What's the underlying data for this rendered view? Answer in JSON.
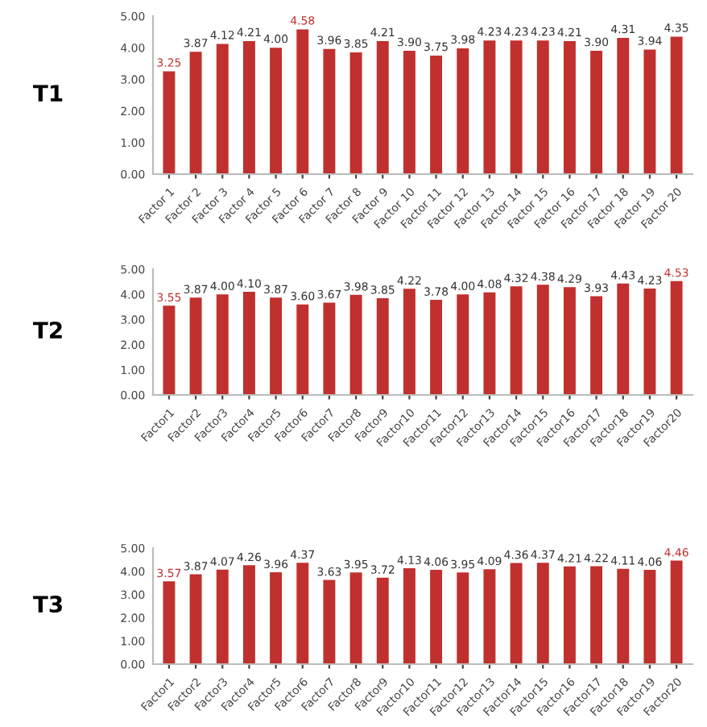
{
  "chart_data": [
    {
      "type": "bar",
      "title": "T1",
      "categories": [
        "Factor 1",
        "Factor 2",
        "Factor 3",
        "Factor 4",
        "Factor 5",
        "Factor 6",
        "Factor 7",
        "Factor 8",
        "Factor 9",
        "Factor 10",
        "Factor 11",
        "Factor 12",
        "Factor 13",
        "Factor 14",
        "Factor 15",
        "Factor 16",
        "Factor 17",
        "Factor 18",
        "Factor 19",
        "Factor 20"
      ],
      "values": [
        3.25,
        3.87,
        4.12,
        4.21,
        4.0,
        4.58,
        3.96,
        3.85,
        4.21,
        3.9,
        3.75,
        3.98,
        4.23,
        4.23,
        4.23,
        4.21,
        3.9,
        4.31,
        3.94,
        4.35
      ],
      "value_labels": [
        "3.25",
        "3.87",
        "4.12",
        "4.21",
        "4.00",
        "4.58",
        "3.96",
        "3.85",
        "4.21",
        "3.90",
        "3.75",
        "3.98",
        "4.23",
        "4.23",
        "4.23",
        "4.21",
        "3.90",
        "4.31",
        "3.94",
        "4.35"
      ],
      "color": "#c0302e",
      "ylim": [
        0,
        5
      ],
      "yticks": [
        {
          "value": 0,
          "label": "0.00"
        },
        {
          "value": 1,
          "label": "1.00"
        },
        {
          "value": 2,
          "label": "2.00"
        },
        {
          "value": 3,
          "label": "3.00"
        },
        {
          "value": 4,
          "label": "4.00"
        },
        {
          "value": 5,
          "label": "5.00"
        }
      ],
      "grid": false
    },
    {
      "type": "bar",
      "title": "T2",
      "categories": [
        "Factor1",
        "Factor2",
        "Factor3",
        "Factor4",
        "Factor5",
        "Factor6",
        "Factor7",
        "Factor8",
        "Factor9",
        "Factor10",
        "Factor11",
        "Factor12",
        "Factor13",
        "Factor14",
        "Factor15",
        "Factor16",
        "Factor17",
        "Factor18",
        "Factor19",
        "Factor20"
      ],
      "values": [
        3.55,
        3.87,
        4.0,
        4.1,
        3.87,
        3.6,
        3.67,
        3.98,
        3.85,
        4.22,
        3.78,
        4.0,
        4.08,
        4.32,
        4.38,
        4.29,
        3.93,
        4.43,
        4.23,
        4.53
      ],
      "value_labels": [
        "3.55",
        "3.87",
        "4.00",
        "4.10",
        "3.87",
        "3.60",
        "3.67",
        "3.98",
        "3.85",
        "4.22",
        "3.78",
        "4.00",
        "4.08",
        "4.32",
        "4.38",
        "4.29",
        "3.93",
        "4.43",
        "4.23",
        "4.53"
      ],
      "color": "#c0302e",
      "ylim": [
        0,
        5
      ],
      "yticks": [
        {
          "value": 0,
          "label": "0.00"
        },
        {
          "value": 1,
          "label": "1.00"
        },
        {
          "value": 2,
          "label": "2.00"
        },
        {
          "value": 3,
          "label": "3.00"
        },
        {
          "value": 4,
          "label": "4.00"
        },
        {
          "value": 5,
          "label": "5.00"
        }
      ],
      "grid": false
    },
    {
      "type": "bar",
      "title": "T3",
      "categories": [
        "Factor1",
        "Factor2",
        "Factor3",
        "Factor4",
        "Factor5",
        "Factor6",
        "Factor7",
        "Factor8",
        "Factor9",
        "Factor10",
        "Factor11",
        "Factor12",
        "Factor13",
        "Factor14",
        "Factor15",
        "Factor16",
        "Factor17",
        "Factor18",
        "Factor19",
        "Factor20"
      ],
      "values": [
        3.57,
        3.87,
        4.07,
        4.26,
        3.96,
        4.37,
        3.63,
        3.95,
        3.72,
        4.13,
        4.06,
        3.95,
        4.09,
        4.36,
        4.37,
        4.21,
        4.22,
        4.11,
        4.06,
        4.46
      ],
      "value_labels": [
        "3.57",
        "3.87",
        "4.07",
        "4.26",
        "3.96",
        "4.37",
        "3.63",
        "3.95",
        "3.72",
        "4.13",
        "4.06",
        "3.95",
        "4.09",
        "4.36",
        "4.37",
        "4.21",
        "4.22",
        "4.11",
        "4.06",
        "4.46"
      ],
      "color": "#c0302e",
      "ylim": [
        0,
        5
      ],
      "yticks": [
        {
          "value": 0,
          "label": "0.00"
        },
        {
          "value": 1,
          "label": "1.00"
        },
        {
          "value": 2,
          "label": "2.00"
        },
        {
          "value": 3,
          "label": "3.00"
        },
        {
          "value": 4,
          "label": "4.00"
        },
        {
          "value": 5,
          "label": "5.00"
        }
      ],
      "grid": false
    }
  ]
}
